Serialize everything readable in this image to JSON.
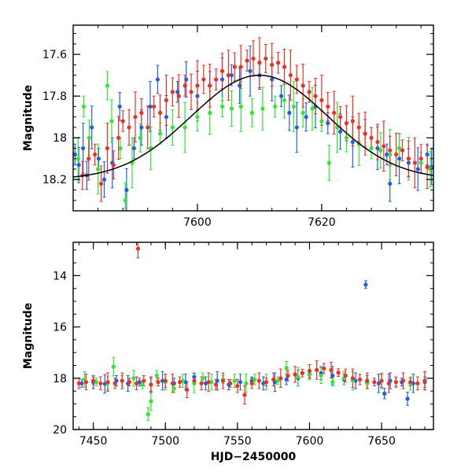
{
  "chart_data": [
    {
      "type": "scatter",
      "title": "",
      "xlabel": "",
      "ylabel": "Magnitude",
      "xlim": [
        7580,
        7638
      ],
      "ylim": [
        18.35,
        17.46
      ],
      "y_inverted": true,
      "xticks": [
        7600,
        7620
      ],
      "xtick_labels": [
        "7600",
        "7620"
      ],
      "yticks": [
        17.6,
        17.8,
        18,
        18.2
      ],
      "ytick_labels": [
        "17.6",
        "17.8",
        "18",
        "18.2"
      ],
      "grid": false,
      "series": [
        {
          "color": "#2060e0",
          "points": [
            [
              7580.3,
              18.08
            ],
            [
              7580.9,
              18.13
            ],
            [
              7581.6,
              18.05
            ],
            [
              7582.2,
              18.18
            ],
            [
              7583.0,
              17.95
            ],
            [
              7584.1,
              18.1
            ],
            [
              7585.0,
              18.2
            ],
            [
              7586.3,
              18.12
            ],
            [
              7587.5,
              17.85
            ],
            [
              7588.6,
              18.25
            ],
            [
              7589.8,
              18.05
            ],
            [
              7591.0,
              17.95
            ],
            [
              7592.4,
              17.85
            ],
            [
              7593.6,
              17.72
            ],
            [
              7595.0,
              17.9
            ],
            [
              7596.8,
              17.78
            ],
            [
              7598.2,
              17.72
            ],
            [
              7600.0,
              17.8
            ],
            [
              7602.0,
              17.75
            ],
            [
              7604.0,
              17.72
            ],
            [
              7605.5,
              17.7
            ],
            [
              7606.8,
              17.75
            ],
            [
              7608.5,
              17.68
            ],
            [
              7610.0,
              17.7
            ],
            [
              7612.0,
              17.72
            ],
            [
              7613.5,
              17.8
            ],
            [
              7614.8,
              17.88
            ],
            [
              7616.0,
              17.95
            ],
            [
              7617.5,
              17.9
            ],
            [
              7619.0,
              17.85
            ],
            [
              7621.0,
              17.93
            ],
            [
              7623.0,
              17.97
            ],
            [
              7625.0,
              18.02
            ],
            [
              7627.0,
              17.98
            ],
            [
              7629.0,
              18.05
            ],
            [
              7630.5,
              18.08
            ],
            [
              7631.0,
              18.22
            ],
            [
              7632.5,
              18.1
            ],
            [
              7634.0,
              18.12
            ],
            [
              7635.5,
              18.15
            ],
            [
              7637.0,
              18.08
            ],
            [
              7637.7,
              18.14
            ]
          ]
        },
        {
          "color": "#2ee82e",
          "points": [
            [
              7580.8,
              18.1
            ],
            [
              7581.7,
              17.85
            ],
            [
              7582.6,
              18.0
            ],
            [
              7584.0,
              18.15
            ],
            [
              7585.5,
              17.75
            ],
            [
              7586.2,
              17.92
            ],
            [
              7587.6,
              18.05
            ],
            [
              7588.4,
              18.3
            ],
            [
              7589.5,
              18.12
            ],
            [
              7590.8,
              18.0
            ],
            [
              7592.5,
              18.05
            ],
            [
              7594.0,
              17.98
            ],
            [
              7596.0,
              17.95
            ],
            [
              7598.0,
              17.95
            ],
            [
              7600.0,
              17.9
            ],
            [
              7602.0,
              17.88
            ],
            [
              7604.0,
              17.85
            ],
            [
              7605.5,
              17.86
            ],
            [
              7607.0,
              17.85
            ],
            [
              7608.8,
              17.88
            ],
            [
              7610.5,
              17.86
            ],
            [
              7612.5,
              17.85
            ],
            [
              7614.0,
              17.82
            ],
            [
              7615.5,
              17.85
            ],
            [
              7617.0,
              17.88
            ],
            [
              7618.5,
              17.86
            ],
            [
              7620.0,
              17.92
            ],
            [
              7621.2,
              18.12
            ],
            [
              7622.5,
              17.95
            ],
            [
              7624.0,
              18.0
            ],
            [
              7626.0,
              18.03
            ],
            [
              7628.0,
              18.05
            ],
            [
              7629.5,
              18.06
            ],
            [
              7631.0,
              18.08
            ],
            [
              7632.5,
              18.05
            ],
            [
              7634.0,
              18.1
            ],
            [
              7636.0,
              18.12
            ],
            [
              7637.5,
              18.15
            ]
          ]
        },
        {
          "color": "#ef2f24",
          "points": [
            [
              7581.5,
              18.18
            ],
            [
              7582.5,
              18.1
            ],
            [
              7583.5,
              18.08
            ],
            [
              7584.5,
              18.22
            ],
            [
              7585.5,
              18.05
            ],
            [
              7586.5,
              18.13
            ],
            [
              7587.3,
              18.0
            ],
            [
              7588.0,
              17.92
            ],
            [
              7589.0,
              17.95
            ],
            [
              7590.0,
              17.9
            ],
            [
              7591.0,
              17.88
            ],
            [
              7592.0,
              17.95
            ],
            [
              7593.0,
              17.85
            ],
            [
              7594.0,
              17.88
            ],
            [
              7595.0,
              17.82
            ],
            [
              7596.0,
              17.78
            ],
            [
              7597.0,
              17.8
            ],
            [
              7598.0,
              17.75
            ],
            [
              7599.0,
              17.78
            ],
            [
              7600.0,
              17.75
            ],
            [
              7601.0,
              17.72
            ],
            [
              7602.0,
              17.75
            ],
            [
              7603.0,
              17.72
            ],
            [
              7604.0,
              17.68
            ],
            [
              7605.0,
              17.7
            ],
            [
              7606.0,
              17.66
            ],
            [
              7607.0,
              17.66
            ],
            [
              7608.0,
              17.63
            ],
            [
              7609.0,
              17.62
            ],
            [
              7610.0,
              17.64
            ],
            [
              7611.0,
              17.62
            ],
            [
              7612.0,
              17.65
            ],
            [
              7613.0,
              17.64
            ],
            [
              7614.0,
              17.66
            ],
            [
              7615.0,
              17.7
            ],
            [
              7616.0,
              17.72
            ],
            [
              7617.0,
              17.75
            ],
            [
              7618.0,
              17.78
            ],
            [
              7619.0,
              17.8
            ],
            [
              7620.0,
              17.82
            ],
            [
              7621.0,
              17.85
            ],
            [
              7622.0,
              17.88
            ],
            [
              7623.0,
              17.9
            ],
            [
              7624.0,
              17.93
            ],
            [
              7625.0,
              17.92
            ],
            [
              7626.0,
              17.95
            ],
            [
              7627.0,
              17.98
            ],
            [
              7628.0,
              18.0
            ],
            [
              7629.0,
              18.02
            ],
            [
              7630.0,
              18.04
            ],
            [
              7631.0,
              18.06
            ],
            [
              7632.0,
              18.08
            ],
            [
              7633.0,
              18.06
            ],
            [
              7634.0,
              18.1
            ],
            [
              7635.0,
              18.12
            ],
            [
              7636.0,
              18.1
            ],
            [
              7637.0,
              18.14
            ]
          ]
        }
      ],
      "model_curve": {
        "peak_x": 7610,
        "peak_y": 17.7,
        "base_y": 18.2,
        "width": 11
      }
    },
    {
      "type": "scatter",
      "title": "",
      "xlabel": "HJD−2450000",
      "ylabel": "Magnitude",
      "xlim": [
        7436,
        7686
      ],
      "ylim": [
        20,
        12.7
      ],
      "y_inverted": true,
      "xticks": [
        7450,
        7500,
        7550,
        7600,
        7650
      ],
      "xtick_labels": [
        "7450",
        "7500",
        "7550",
        "7600",
        "7650"
      ],
      "yticks": [
        14,
        16,
        18,
        20
      ],
      "ytick_labels": [
        "14",
        "16",
        "18",
        "20"
      ],
      "grid": false,
      "series": [
        {
          "color": "#2060e0",
          "points": [
            [
              7442,
              18.2
            ],
            [
              7450,
              18.15
            ],
            [
              7458,
              18.22
            ],
            [
              7466,
              18.1
            ],
            [
              7474,
              18.2
            ],
            [
              7482,
              18.15
            ],
            [
              7490,
              18.25
            ],
            [
              7498,
              18.1
            ],
            [
              7506,
              18.2
            ],
            [
              7514,
              18.15
            ],
            [
              7520,
              17.95
            ],
            [
              7528,
              18.2
            ],
            [
              7536,
              18.1
            ],
            [
              7544,
              18.25
            ],
            [
              7552,
              18.15
            ],
            [
              7560,
              18.1
            ],
            [
              7568,
              18.2
            ],
            [
              7576,
              18.15
            ],
            [
              7584,
              18.05
            ],
            [
              7592,
              18.0
            ],
            [
              7600,
              17.85
            ],
            [
              7608,
              17.8
            ],
            [
              7616,
              17.9
            ],
            [
              7624,
              18.05
            ],
            [
              7632,
              18.1
            ],
            [
              7639,
              14.35
            ],
            [
              7640,
              18.15
            ],
            [
              7648,
              18.2
            ],
            [
              7652,
              18.6
            ],
            [
              7656,
              18.1
            ],
            [
              7664,
              18.15
            ],
            [
              7668,
              18.8
            ],
            [
              7672,
              18.2
            ],
            [
              7680,
              18.15
            ]
          ]
        },
        {
          "color": "#2ee82e",
          "points": [
            [
              7444,
              18.05
            ],
            [
              7452,
              18.15
            ],
            [
              7460,
              18.2
            ],
            [
              7464,
              17.55
            ],
            [
              7470,
              18.1
            ],
            [
              7478,
              18.0
            ],
            [
              7484,
              18.25
            ],
            [
              7488,
              19.4
            ],
            [
              7490,
              18.9
            ],
            [
              7494,
              17.9
            ],
            [
              7500,
              18.15
            ],
            [
              7506,
              18.4
            ],
            [
              7512,
              18.1
            ],
            [
              7520,
              18.2
            ],
            [
              7526,
              18.0
            ],
            [
              7532,
              18.15
            ],
            [
              7540,
              18.05
            ],
            [
              7548,
              18.1
            ],
            [
              7556,
              18.2
            ],
            [
              7562,
              18.05
            ],
            [
              7570,
              18.15
            ],
            [
              7578,
              18.1
            ],
            [
              7584,
              17.6
            ],
            [
              7592,
              17.95
            ],
            [
              7600,
              17.85
            ],
            [
              7608,
              17.9
            ],
            [
              7616,
              18.15
            ],
            [
              7624,
              18.0
            ],
            [
              7630,
              18.1
            ],
            [
              7640,
              18.2
            ],
            [
              7650,
              18.1
            ],
            [
              7660,
              18.15
            ],
            [
              7670,
              18.2
            ],
            [
              7680,
              18.1
            ]
          ]
        },
        {
          "color": "#ef2f24",
          "points": [
            [
              7440,
              18.2
            ],
            [
              7445,
              18.15
            ],
            [
              7450,
              18.1
            ],
            [
              7455,
              18.2
            ],
            [
              7460,
              18.15
            ],
            [
              7465,
              18.2
            ],
            [
              7470,
              18.1
            ],
            [
              7475,
              18.15
            ],
            [
              7480,
              18.2
            ],
            [
              7481,
              12.95
            ],
            [
              7485,
              18.1
            ],
            [
              7490,
              18.25
            ],
            [
              7495,
              18.15
            ],
            [
              7500,
              18.1
            ],
            [
              7505,
              18.2
            ],
            [
              7510,
              18.15
            ],
            [
              7515,
              18.45
            ],
            [
              7520,
              18.1
            ],
            [
              7525,
              18.2
            ],
            [
              7530,
              18.15
            ],
            [
              7535,
              18.25
            ],
            [
              7540,
              18.1
            ],
            [
              7545,
              18.2
            ],
            [
              7550,
              18.3
            ],
            [
              7555,
              18.65
            ],
            [
              7560,
              18.2
            ],
            [
              7565,
              18.1
            ],
            [
              7570,
              18.15
            ],
            [
              7575,
              18.05
            ],
            [
              7580,
              18.0
            ],
            [
              7585,
              17.9
            ],
            [
              7590,
              17.85
            ],
            [
              7595,
              17.8
            ],
            [
              7600,
              17.72
            ],
            [
              7605,
              17.68
            ],
            [
              7610,
              17.62
            ],
            [
              7615,
              17.68
            ],
            [
              7620,
              17.78
            ],
            [
              7625,
              17.9
            ],
            [
              7630,
              18.0
            ],
            [
              7635,
              18.05
            ],
            [
              7640,
              18.1
            ],
            [
              7645,
              18.15
            ],
            [
              7650,
              18.1
            ],
            [
              7655,
              18.2
            ],
            [
              7660,
              18.15
            ],
            [
              7665,
              18.1
            ],
            [
              7670,
              18.15
            ],
            [
              7675,
              18.2
            ],
            [
              7680,
              18.1
            ]
          ]
        }
      ]
    }
  ]
}
